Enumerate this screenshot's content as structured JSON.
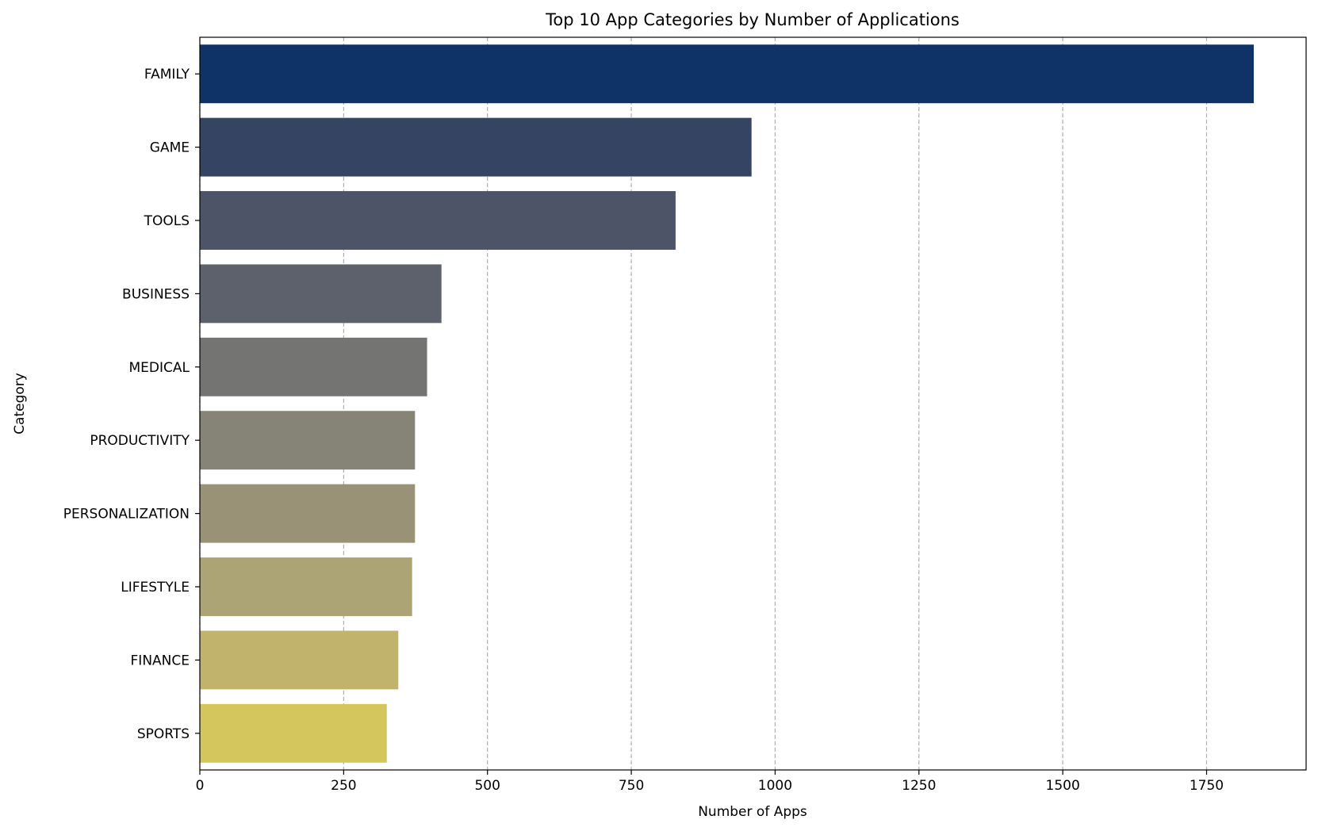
{
  "chart_data": {
    "type": "bar",
    "orientation": "horizontal",
    "title": "Top 10 App Categories by Number of Applications",
    "xlabel": "Number of Apps",
    "ylabel": "Category",
    "categories": [
      "FAMILY",
      "GAME",
      "TOOLS",
      "BUSINESS",
      "MEDICAL",
      "PRODUCTIVITY",
      "PERSONALIZATION",
      "LIFESTYLE",
      "FINANCE",
      "SPORTS"
    ],
    "values": [
      1832,
      959,
      827,
      420,
      395,
      374,
      374,
      369,
      345,
      325
    ],
    "colors": [
      "#0f3366",
      "#344462",
      "#4d5467",
      "#5d616b",
      "#747473",
      "#868377",
      "#999277",
      "#ada475",
      "#c1b36c",
      "#d4c55d"
    ],
    "xlim": [
      0,
      1923
    ],
    "xticks": [
      0,
      250,
      500,
      750,
      1000,
      1250,
      1500,
      1750
    ],
    "grid": "x-dashed",
    "grid_color": "#b0b0b0"
  }
}
